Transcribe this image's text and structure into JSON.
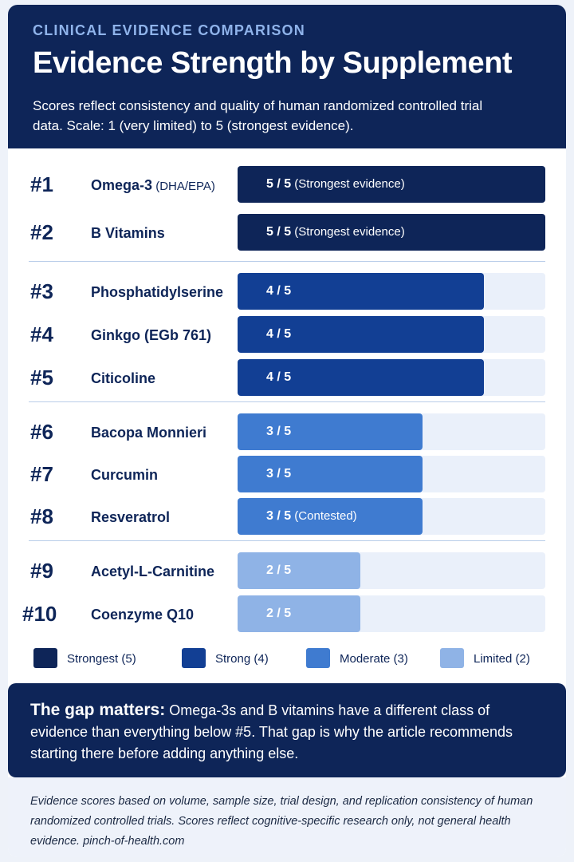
{
  "header": {
    "eyebrow": "CLINICAL EVIDENCE COMPARISON",
    "title": "Evidence Strength by Supplement",
    "subtitle": "Scores reflect consistency and quality of human randomized controlled trial data. Scale: 1 (very limited) to 5 (strongest evidence)."
  },
  "chart_data": {
    "type": "bar",
    "orientation": "horizontal",
    "title": "Evidence Strength by Supplement",
    "xlim": [
      0,
      5
    ],
    "grid": false,
    "legend_placement": "bottom",
    "items": [
      {
        "rank": "#1",
        "name": "Omega-3",
        "detail": "(DHA/EPA)",
        "value": 5,
        "label": "5 / 5",
        "note": "(Strongest evidence)",
        "tier": "strongest"
      },
      {
        "rank": "#2",
        "name": "B Vitamins",
        "detail": "",
        "value": 5,
        "label": "5 / 5",
        "note": "(Strongest evidence)",
        "tier": "strongest"
      },
      {
        "rank": "#3",
        "name": "Phosphatidylserine",
        "detail": "",
        "value": 4,
        "label": "4 / 5",
        "note": "",
        "tier": "strong"
      },
      {
        "rank": "#4",
        "name": "Ginkgo (EGb 761)",
        "detail": "",
        "value": 4,
        "label": "4 / 5",
        "note": "",
        "tier": "strong"
      },
      {
        "rank": "#5",
        "name": "Citicoline",
        "detail": "",
        "value": 4,
        "label": "4 / 5",
        "note": "",
        "tier": "strong"
      },
      {
        "rank": "#6",
        "name": "Bacopa Monnieri",
        "detail": "",
        "value": 3,
        "label": "3 / 5",
        "note": "",
        "tier": "moderate"
      },
      {
        "rank": "#7",
        "name": "Curcumin",
        "detail": "",
        "value": 3,
        "label": "3 / 5",
        "note": "",
        "tier": "moderate"
      },
      {
        "rank": "#8",
        "name": "Resveratrol",
        "detail": "",
        "value": 3,
        "label": "3 / 5",
        "note": "(Contested)",
        "tier": "moderate"
      },
      {
        "rank": "#9",
        "name": "Acetyl-L-Carnitine",
        "detail": "",
        "value": 2,
        "label": "2 / 5",
        "note": "",
        "tier": "limited"
      },
      {
        "rank": "#10",
        "name": "Coenzyme Q10",
        "detail": "",
        "value": 2,
        "label": "2 / 5",
        "note": "",
        "tier": "limited"
      }
    ],
    "legend": [
      {
        "label": "Strongest (5)",
        "tier": "strongest",
        "color": "#0e2558"
      },
      {
        "label": "Strong (4)",
        "tier": "strong",
        "color": "#123f94"
      },
      {
        "label": "Moderate (3)",
        "tier": "moderate",
        "color": "#3f7bd0"
      },
      {
        "label": "Limited (2)",
        "tier": "limited",
        "color": "#8fb3e6"
      }
    ]
  },
  "colors": {
    "navy": "#0e2558",
    "track": "#eaf0fa",
    "accent": "#8fb3ea"
  },
  "callout": {
    "lead": "The gap matters:",
    "body": "Omega-3s and B vitamins have a different class of evidence than everything below #5. That gap is why the article recommends starting there before adding anything else."
  },
  "footer": {
    "text": "Evidence scores based on volume, sample size, trial design, and replication consistency of human randomized controlled trials. Scores reflect cognitive-specific research only, not general health evidence. pinch-of-health.com"
  }
}
